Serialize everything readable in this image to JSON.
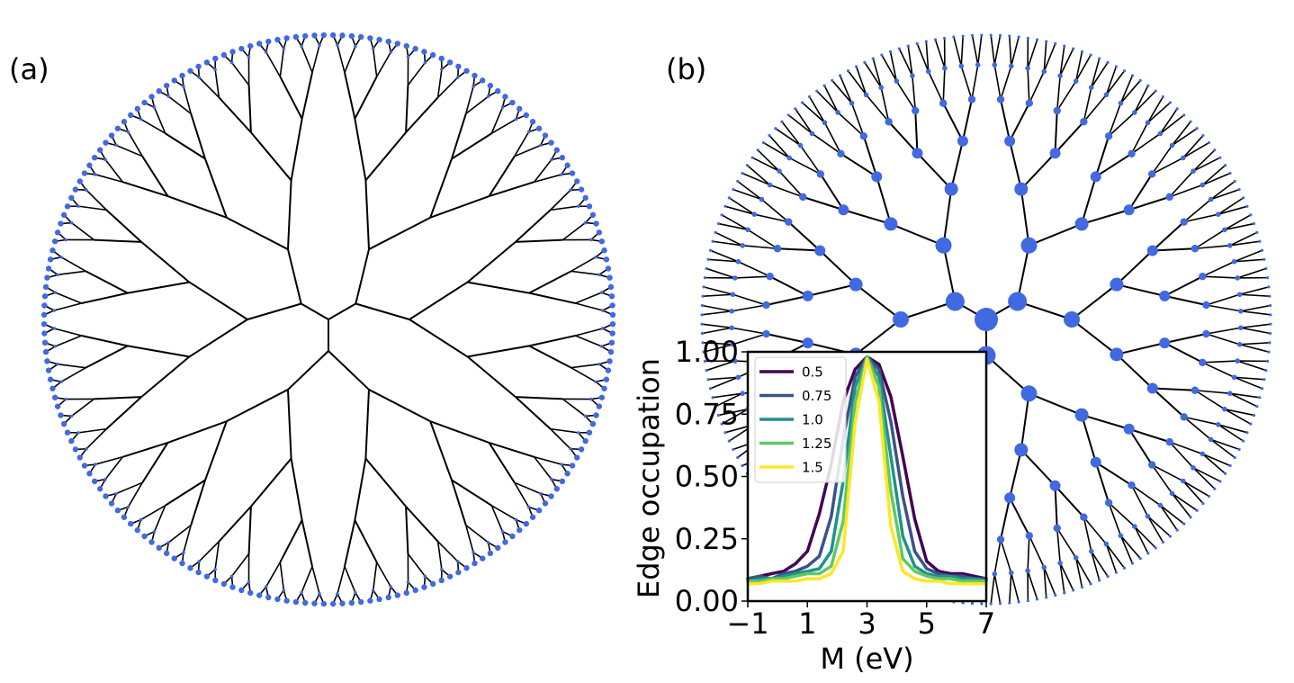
{
  "panels": {
    "a_label": "(a)",
    "b_label": "(b)"
  },
  "colors": {
    "node": "#4169e1",
    "edge": "#000000",
    "curve_0.5": "#440154",
    "curve_0.75": "#3b528b",
    "curve_1.0": "#21918c",
    "curve_1.25": "#5ec962",
    "curve_1.5": "#fde725"
  },
  "trees": {
    "description_free": true,
    "root_branching": 3,
    "children_per_node": 2,
    "depth": 7
  },
  "chart_data": {
    "type": "line",
    "title": "",
    "xlabel": "M (eV)",
    "ylabel": "Edge occupation",
    "xlim": [
      -1,
      7
    ],
    "ylim": [
      0,
      1
    ],
    "xticks": [
      -1,
      1,
      3,
      5,
      7
    ],
    "xtick_labels": [
      "−1",
      "1",
      "3",
      "5",
      "7"
    ],
    "yticks": [
      0,
      0.25,
      0.5,
      0.75,
      1.0
    ],
    "ytick_labels": [
      "0.00",
      "0.25",
      "0.50",
      "0.75",
      "1.00"
    ],
    "legend_placement": "upper-left",
    "grid": false,
    "series": [
      {
        "name": "0.5",
        "color": "#440154",
        "x": [
          -1.0,
          -0.6,
          -0.2,
          0.2,
          0.6,
          1.0,
          1.4,
          1.8,
          2.2,
          2.6,
          3.0,
          3.4,
          3.8,
          4.2,
          4.6,
          5.0,
          5.4,
          5.8,
          6.2,
          6.6,
          7.0
        ],
        "y": [
          0.09,
          0.1,
          0.11,
          0.12,
          0.15,
          0.2,
          0.35,
          0.55,
          0.8,
          0.93,
          0.98,
          0.95,
          0.82,
          0.58,
          0.33,
          0.16,
          0.12,
          0.11,
          0.11,
          0.1,
          0.09
        ]
      },
      {
        "name": "0.75",
        "color": "#3b528b",
        "x": [
          -1.0,
          -0.6,
          -0.2,
          0.2,
          0.6,
          1.0,
          1.4,
          1.8,
          2.2,
          2.6,
          3.0,
          3.4,
          3.8,
          4.2,
          4.6,
          5.0,
          5.4,
          5.8,
          6.2,
          6.6,
          7.0
        ],
        "y": [
          0.09,
          0.1,
          0.09,
          0.11,
          0.12,
          0.14,
          0.18,
          0.34,
          0.65,
          0.9,
          0.98,
          0.93,
          0.72,
          0.42,
          0.2,
          0.13,
          0.11,
          0.1,
          0.1,
          0.09,
          0.09
        ]
      },
      {
        "name": "1.0",
        "color": "#21918c",
        "x": [
          -1.0,
          -0.6,
          -0.2,
          0.2,
          0.6,
          1.0,
          1.4,
          1.8,
          2.2,
          2.6,
          3.0,
          3.4,
          3.8,
          4.2,
          4.6,
          5.0,
          5.4,
          5.8,
          6.2,
          6.6,
          7.0
        ],
        "y": [
          0.08,
          0.09,
          0.09,
          0.1,
          0.11,
          0.12,
          0.13,
          0.2,
          0.48,
          0.86,
          0.98,
          0.9,
          0.58,
          0.26,
          0.14,
          0.11,
          0.1,
          0.1,
          0.09,
          0.09,
          0.08
        ]
      },
      {
        "name": "1.25",
        "color": "#5ec962",
        "x": [
          -1.0,
          -0.6,
          -0.2,
          0.2,
          0.6,
          1.0,
          1.4,
          1.8,
          2.2,
          2.6,
          3.0,
          3.4,
          3.8,
          4.2,
          4.6,
          5.0,
          5.4,
          5.8,
          6.2,
          6.6,
          7.0
        ],
        "y": [
          0.08,
          0.08,
          0.09,
          0.09,
          0.1,
          0.11,
          0.11,
          0.14,
          0.32,
          0.8,
          0.98,
          0.86,
          0.44,
          0.17,
          0.12,
          0.1,
          0.09,
          0.09,
          0.08,
          0.08,
          0.08
        ]
      },
      {
        "name": "1.5",
        "color": "#fde725",
        "x": [
          -1.0,
          -0.6,
          -0.2,
          0.2,
          0.6,
          1.0,
          1.4,
          1.8,
          2.2,
          2.6,
          3.0,
          3.4,
          3.8,
          4.2,
          4.6,
          5.0,
          5.4,
          5.8,
          6.2,
          6.6,
          7.0
        ],
        "y": [
          0.07,
          0.07,
          0.08,
          0.08,
          0.08,
          0.09,
          0.09,
          0.11,
          0.2,
          0.72,
          0.97,
          0.8,
          0.3,
          0.12,
          0.09,
          0.08,
          0.08,
          0.07,
          0.07,
          0.07,
          0.07
        ]
      }
    ]
  }
}
